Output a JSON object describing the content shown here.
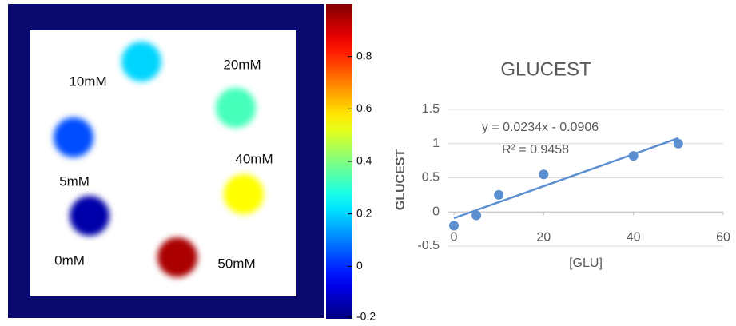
{
  "chart_data": [
    {
      "type": "image",
      "clim": [
        -0.2,
        1.0
      ],
      "cticks": [
        -0.2,
        0,
        0.2,
        0.4,
        0.6,
        0.8
      ],
      "spots": [
        {
          "label": "10mM",
          "value": 0.2
        },
        {
          "label": "20mM",
          "value": 0.33
        },
        {
          "label": "5mM",
          "value": 0.04
        },
        {
          "label": "40mM",
          "value": 0.55
        },
        {
          "label": "0mM",
          "value": -0.15
        },
        {
          "label": "50mM",
          "value": 0.95
        }
      ]
    },
    {
      "type": "scatter",
      "title": "GLUCEST",
      "x_label": "[GLU]",
      "y_label": "GLUCEST",
      "color": "#5b8fd0",
      "x": [
        0,
        5,
        10,
        20,
        40,
        50
      ],
      "values": [
        -0.2,
        -0.05,
        0.25,
        0.55,
        0.82,
        1.0
      ],
      "xlim": [
        0,
        60
      ],
      "ylim": [
        -0.5,
        1.5
      ],
      "xticks": [
        0,
        20,
        40,
        60
      ],
      "yticks": [
        -0.5,
        0,
        0.5,
        1,
        1.5
      ],
      "grid": true,
      "trendline": {
        "slope": 0.0234,
        "intercept": -0.0906,
        "equation": "y = 0.0234x - 0.0906",
        "r_squared": "R² = 0.9458"
      }
    }
  ]
}
